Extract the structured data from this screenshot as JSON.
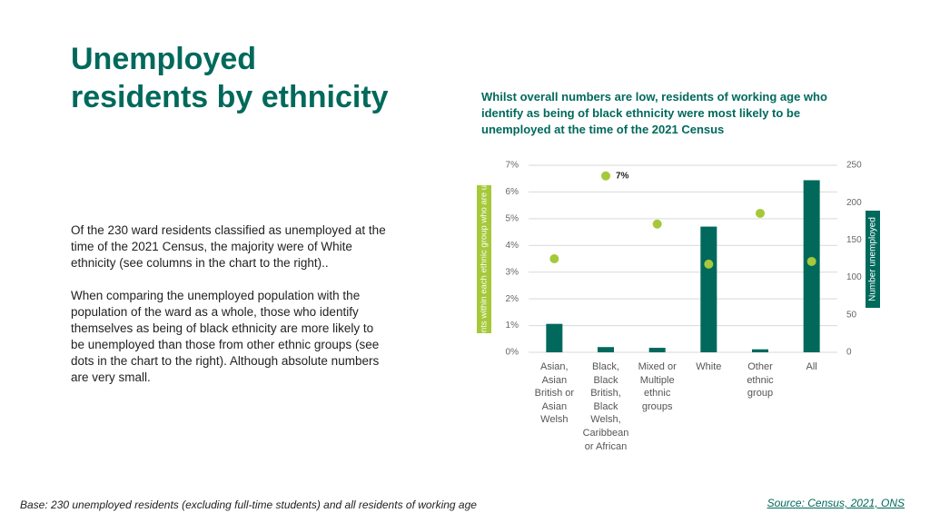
{
  "title": [
    "Unemployed",
    "residents by ethnicity"
  ],
  "subtitle": "Whilst overall numbers are low, residents of working age who identify as being of black ethnicity were most likely to be unemployed at the time of the 2021 Census",
  "paragraphs": [
    "Of the 230 ward residents classified as unemployed at the time of the 2021 Census, the majority were of White ethnicity (see columns in the chart to the right)..",
    "When comparing the unemployed population with the population of the ward as a whole, those who identify themselves as being of black ethnicity are more likely to be unemployed than those from other ethnic groups (see dots in the chart to the right). Although absolute numbers are very small."
  ],
  "footnote": "Base: 230 unemployed residents (excluding full-time students) and all residents of working age",
  "source": "Source: Census, 2021, ONS",
  "chart_data": {
    "type": "bar",
    "categories": [
      "Asian, Asian British or Asian Welsh",
      "Black, Black British, Black Welsh, Caribbean or African",
      "Mixed or Multiple ethnic groups",
      "White",
      "Other ethnic group",
      "All"
    ],
    "ylabel": "% of residents within each ethnic group who are unemployed",
    "y2label": "Number unemployed",
    "ylim": [
      0,
      7
    ],
    "yticks": [
      {
        "value": 0,
        "label": "0%"
      },
      {
        "value": 1,
        "label": "1%"
      },
      {
        "value": 2,
        "label": "2%"
      },
      {
        "value": 3,
        "label": "3%"
      },
      {
        "value": 4,
        "label": "4%"
      },
      {
        "value": 5,
        "label": "5%"
      },
      {
        "value": 6,
        "label": "6%"
      },
      {
        "value": 7,
        "label": "7%"
      }
    ],
    "y2lim": [
      0,
      250
    ],
    "y2ticks": [
      0,
      50,
      100,
      150,
      200,
      250
    ],
    "grid": true,
    "series": [
      {
        "type": "bar",
        "axis": "y2",
        "color": "#00695c",
        "values": [
          38,
          7,
          6,
          168,
          4,
          230
        ]
      },
      {
        "type": "scatter",
        "axis": "y",
        "color": "#a5c93a",
        "values": [
          3.5,
          6.6,
          4.8,
          3.3,
          5.2,
          3.4
        ],
        "value_labels": [
          null,
          "7%",
          null,
          null,
          null,
          null
        ]
      }
    ]
  }
}
